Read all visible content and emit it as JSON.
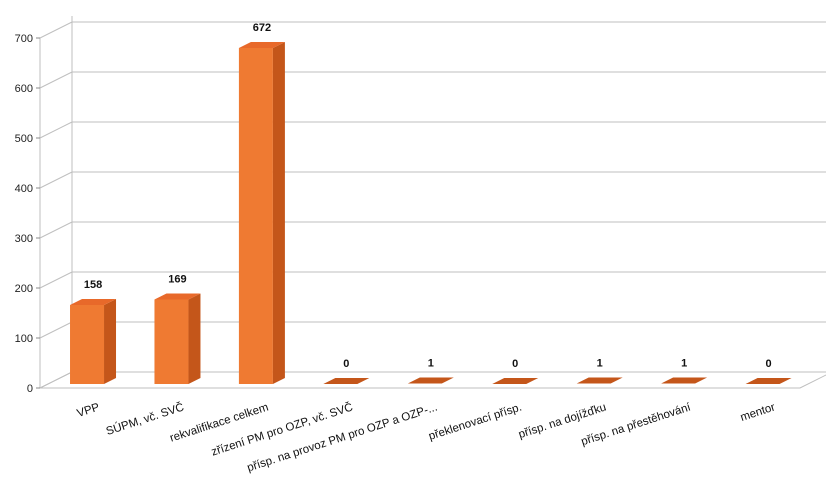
{
  "chart_data": {
    "type": "bar",
    "style": "3d-column",
    "title": "",
    "xlabel": "",
    "ylabel": "",
    "categories": [
      "VPP",
      "SÚPM, vč. SVČ",
      "rekvalifikace celkem",
      "zřízení PM pro OZP, vč. SVČ",
      "přísp. na provoz PM pro OZP a OZP-...",
      "překlenovací přísp.",
      "přísp. na dojížďku",
      "přísp. na přestěhování",
      "mentor"
    ],
    "values": [
      158,
      169,
      672,
      0,
      1,
      0,
      1,
      1,
      0
    ],
    "data_labels": [
      "158",
      "169",
      "672",
      "0",
      "1",
      "0",
      "1",
      "1",
      "0"
    ],
    "ylim": [
      0,
      700
    ],
    "yticks": [
      "0",
      "100",
      "200",
      "300",
      "400",
      "500",
      "600",
      "700"
    ],
    "grid": true,
    "legend": "none",
    "colors": {
      "bar_front": "#ef7a32",
      "bar_side": "#c4561a",
      "bar_top": "#e8692a",
      "grid": "#bfbfbf",
      "axis_text": "#222222"
    }
  }
}
